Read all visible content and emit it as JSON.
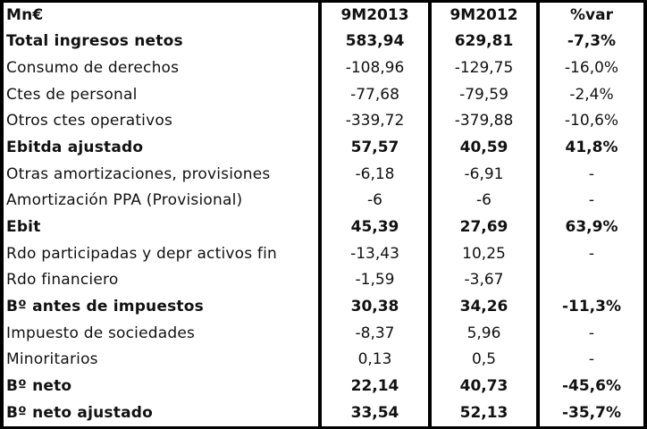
{
  "table": {
    "headers": [
      "Mn€",
      "9M2013",
      "9M2012",
      "%var"
    ],
    "rows": [
      {
        "label": "Total ingresos netos",
        "y2013": "583,94",
        "y2012": "629,81",
        "var": "-7,3%",
        "bold": true
      },
      {
        "label": "Consumo de derechos",
        "y2013": "-108,96",
        "y2012": "-129,75",
        "var": "-16,0%",
        "bold": false
      },
      {
        "label": "Ctes de personal",
        "y2013": "-77,68",
        "y2012": "-79,59",
        "var": "-2,4%",
        "bold": false
      },
      {
        "label": "Otros ctes operativos",
        "y2013": "-339,72",
        "y2012": "-379,88",
        "var": "-10,6%",
        "bold": false
      },
      {
        "label": "Ebitda ajustado",
        "y2013": "57,57",
        "y2012": "40,59",
        "var": "41,8%",
        "bold": true
      },
      {
        "label": "Otras amortizaciones, provisiones",
        "y2013": "-6,18",
        "y2012": "-6,91",
        "var": "-",
        "bold": false
      },
      {
        "label": "Amortización PPA (Provisional)",
        "y2013": "-6",
        "y2012": "-6",
        "var": "-",
        "bold": false
      },
      {
        "label": "Ebit",
        "y2013": "45,39",
        "y2012": "27,69",
        "var": "63,9%",
        "bold": true
      },
      {
        "label": "Rdo participadas y depr activos fin",
        "y2013": "-13,43",
        "y2012": "10,25",
        "var": "-",
        "bold": false
      },
      {
        "label": "Rdo financiero",
        "y2013": "-1,59",
        "y2012": "-3,67",
        "var": "",
        "bold": false
      },
      {
        "label": "Bº antes de impuestos",
        "y2013": "30,38",
        "y2012": "34,26",
        "var": "-11,3%",
        "bold": true
      },
      {
        "label": "Impuesto de sociedades",
        "y2013": "-8,37",
        "y2012": "5,96",
        "var": "-",
        "bold": false
      },
      {
        "label": "Minoritarios",
        "y2013": "0,13",
        "y2012": "0,5",
        "var": "-",
        "bold": false
      },
      {
        "label": "Bº neto",
        "y2013": "22,14",
        "y2012": "40,73",
        "var": "-45,6%",
        "bold": true
      },
      {
        "label": "Bº neto ajustado",
        "y2013": "33,54",
        "y2012": "52,13",
        "var": "-35,7%",
        "bold": true
      }
    ]
  }
}
